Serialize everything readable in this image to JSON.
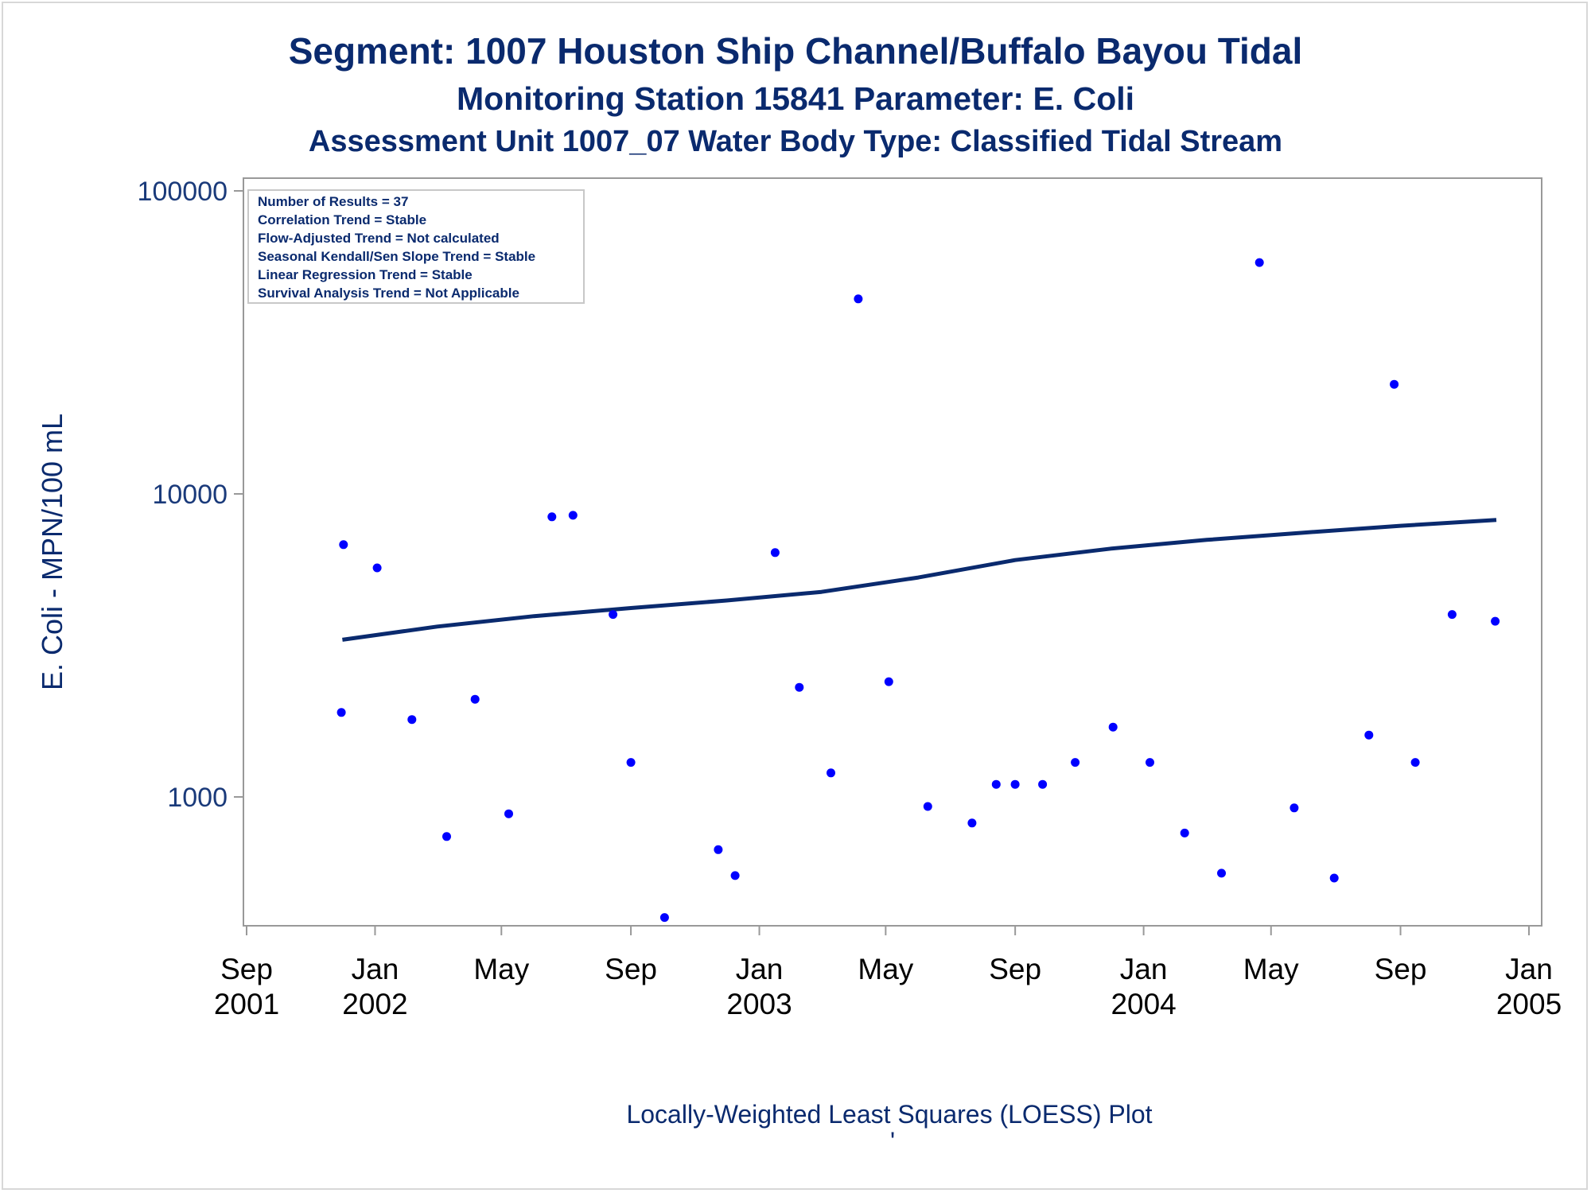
{
  "titles": {
    "line1": "Segment: 1007  Houston Ship Channel/Buffalo Bayou Tidal",
    "line2": "Monitoring Station 15841 Parameter: E. Coli",
    "line3": "Assessment Unit 1007_07   Water Body Type: Classified Tidal Stream"
  },
  "stats_box": [
    "Number of Results = 37",
    "Correlation Trend = Stable",
    "Flow-Adjusted Trend = Not calculated",
    "Seasonal Kendall/Sen Slope Trend = Stable",
    "Linear Regression Trend = Stable",
    "Survival Analysis Trend = Not Applicable"
  ],
  "footnote": "Locally-Weighted Least Squares (LOESS) Plot",
  "footnote_mark": "'",
  "colors": {
    "points": "#0000ff",
    "line": "#0a2a6e",
    "text": "#0a2a6e",
    "axis": "#999999"
  },
  "chart_data": {
    "type": "scatter",
    "ylabel": "E. Coli - MPN/100 mL",
    "yscale": "log",
    "ylim": [
      400,
      100000
    ],
    "yticks": [
      1000,
      10000,
      100000
    ],
    "ytick_labels": [
      "1000",
      "10000",
      "100000"
    ],
    "xlim": [
      "2001-09-01",
      "2005-01-01"
    ],
    "xticks": [
      {
        "date": "2001-09-01",
        "label": [
          "Sep",
          "2001"
        ]
      },
      {
        "date": "2002-01-01",
        "label": [
          "Jan",
          "2002"
        ]
      },
      {
        "date": "2002-05-01",
        "label": [
          "May",
          ""
        ]
      },
      {
        "date": "2002-09-01",
        "label": [
          "Sep",
          ""
        ]
      },
      {
        "date": "2003-01-01",
        "label": [
          "Jan",
          "2003"
        ]
      },
      {
        "date": "2003-05-01",
        "label": [
          "May",
          ""
        ]
      },
      {
        "date": "2003-09-01",
        "label": [
          "Sep",
          ""
        ]
      },
      {
        "date": "2004-01-01",
        "label": [
          "Jan",
          "2004"
        ]
      },
      {
        "date": "2004-05-01",
        "label": [
          "May",
          ""
        ]
      },
      {
        "date": "2004-09-01",
        "label": [
          "Sep",
          ""
        ]
      },
      {
        "date": "2005-01-01",
        "label": [
          "Jan",
          "2005"
        ]
      }
    ],
    "series": [
      {
        "type": "scatter",
        "points": [
          {
            "x": "2001-11-30",
            "y": 1900
          },
          {
            "x": "2001-12-02",
            "y": 6800
          },
          {
            "x": "2002-01-03",
            "y": 5700
          },
          {
            "x": "2002-02-05",
            "y": 1800
          },
          {
            "x": "2002-03-10",
            "y": 740
          },
          {
            "x": "2002-04-06",
            "y": 2100
          },
          {
            "x": "2002-05-08",
            "y": 880
          },
          {
            "x": "2002-06-18",
            "y": 8400
          },
          {
            "x": "2002-07-08",
            "y": 8500
          },
          {
            "x": "2002-08-15",
            "y": 4000
          },
          {
            "x": "2002-09-01",
            "y": 1300
          },
          {
            "x": "2002-10-03",
            "y": 400
          },
          {
            "x": "2002-11-23",
            "y": 670
          },
          {
            "x": "2002-12-09",
            "y": 550
          },
          {
            "x": "2003-01-16",
            "y": 6400
          },
          {
            "x": "2003-02-08",
            "y": 2300
          },
          {
            "x": "2003-03-10",
            "y": 1200
          },
          {
            "x": "2003-04-05",
            "y": 44000
          },
          {
            "x": "2003-05-04",
            "y": 2400
          },
          {
            "x": "2003-06-10",
            "y": 930
          },
          {
            "x": "2003-07-22",
            "y": 820
          },
          {
            "x": "2003-08-14",
            "y": 1100
          },
          {
            "x": "2003-09-01",
            "y": 1100
          },
          {
            "x": "2003-09-27",
            "y": 1100
          },
          {
            "x": "2003-10-28",
            "y": 1300
          },
          {
            "x": "2003-12-03",
            "y": 1700
          },
          {
            "x": "2004-01-07",
            "y": 1300
          },
          {
            "x": "2004-02-09",
            "y": 760
          },
          {
            "x": "2004-03-15",
            "y": 560
          },
          {
            "x": "2004-04-20",
            "y": 58000
          },
          {
            "x": "2004-05-23",
            "y": 920
          },
          {
            "x": "2004-06-30",
            "y": 540
          },
          {
            "x": "2004-08-02",
            "y": 1600
          },
          {
            "x": "2004-08-26",
            "y": 23000
          },
          {
            "x": "2004-09-15",
            "y": 1300
          },
          {
            "x": "2004-10-20",
            "y": 4000
          },
          {
            "x": "2004-11-30",
            "y": 3800
          }
        ]
      },
      {
        "type": "line",
        "points": [
          {
            "x": "2001-12-01",
            "y": 3300
          },
          {
            "x": "2002-03-01",
            "y": 3650
          },
          {
            "x": "2002-06-01",
            "y": 3950
          },
          {
            "x": "2002-09-01",
            "y": 4200
          },
          {
            "x": "2002-12-01",
            "y": 4450
          },
          {
            "x": "2003-03-01",
            "y": 4750
          },
          {
            "x": "2003-06-01",
            "y": 5300
          },
          {
            "x": "2003-09-01",
            "y": 6050
          },
          {
            "x": "2003-12-01",
            "y": 6600
          },
          {
            "x": "2004-03-01",
            "y": 7050
          },
          {
            "x": "2004-06-01",
            "y": 7450
          },
          {
            "x": "2004-09-01",
            "y": 7850
          },
          {
            "x": "2004-12-01",
            "y": 8200
          }
        ]
      }
    ]
  }
}
